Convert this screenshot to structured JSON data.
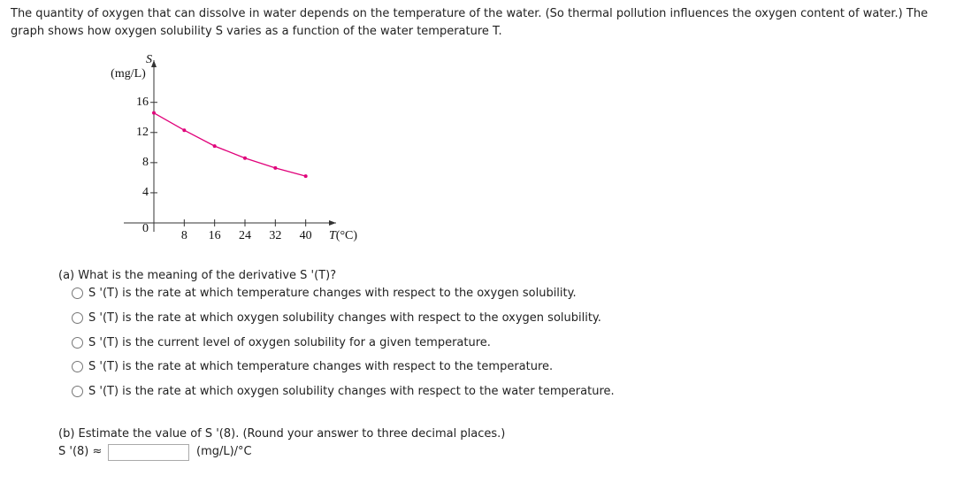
{
  "intro": "The quantity of oxygen that can dissolve in water depends on the temperature of the water. (So thermal pollution influences the oxygen content of water.) The graph shows how oxygen solubility S varies as a function of the water temperature T.",
  "chart_data": {
    "type": "line",
    "y_label": "S",
    "y_unit": "(mg/L)",
    "x_label": "T",
    "x_unit": "(°C)",
    "x": [
      0,
      8,
      16,
      24,
      32,
      40
    ],
    "values": [
      14.6,
      12.3,
      10.2,
      8.6,
      7.3,
      6.2
    ],
    "color": "#e0007a",
    "xlim": [
      0,
      48
    ],
    "ylim": [
      0,
      21.6
    ],
    "xticks": [
      8,
      16,
      24,
      32,
      40
    ],
    "yticks": [
      0,
      4,
      8,
      12,
      16
    ]
  },
  "question_a": {
    "prompt": "(a) What is the meaning of the derivative S '(T)?",
    "options": [
      "S '(T) is the rate at which temperature changes with respect to the oxygen solubility.",
      "S '(T) is the rate at which oxygen solubility changes with respect to the oxygen solubility.",
      "S '(T) is the current level of oxygen solubility for a given temperature.",
      "S '(T) is the rate at which temperature changes with respect to the temperature.",
      "S '(T) is the rate at which oxygen solubility changes with respect to the water temperature."
    ]
  },
  "question_b": {
    "prompt": "(b) Estimate the value of S '(8). (Round your answer to three decimal places.)",
    "answer_label": "S '(8) ≈",
    "unit": "(mg/L)/°C"
  }
}
